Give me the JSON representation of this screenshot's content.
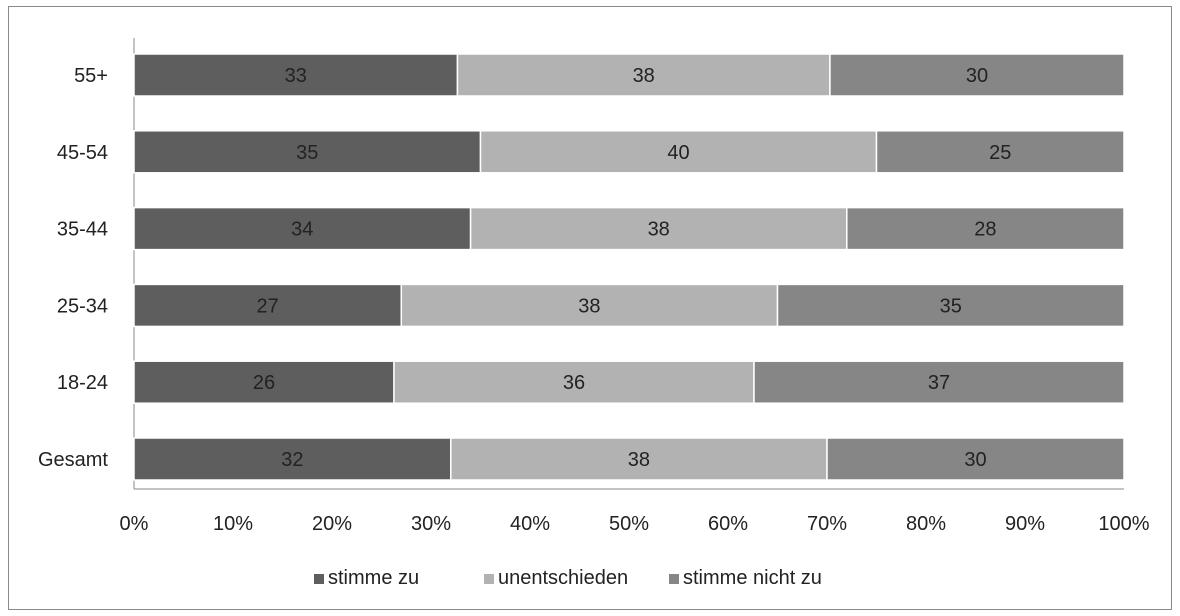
{
  "chart_data": {
    "type": "bar",
    "orientation": "horizontal",
    "stacked": "percent",
    "categories": [
      "55+",
      "45-54",
      "35-44",
      "25-34",
      "18-24",
      "Gesamt"
    ],
    "series": [
      {
        "name": "stimme zu",
        "color": "#5e5e5e",
        "values": [
          33,
          35,
          34,
          27,
          26,
          32
        ]
      },
      {
        "name": "unentschieden",
        "color": "#b2b2b2",
        "values": [
          38,
          40,
          38,
          38,
          36,
          38
        ]
      },
      {
        "name": "stimme nicht zu",
        "color": "#868686",
        "values": [
          30,
          25,
          28,
          35,
          37,
          30
        ]
      }
    ],
    "xticks": [
      "0%",
      "10%",
      "20%",
      "30%",
      "40%",
      "50%",
      "60%",
      "70%",
      "80%",
      "90%",
      "100%"
    ],
    "xlim": [
      0,
      100
    ],
    "legend_position": "bottom",
    "grid": false
  }
}
